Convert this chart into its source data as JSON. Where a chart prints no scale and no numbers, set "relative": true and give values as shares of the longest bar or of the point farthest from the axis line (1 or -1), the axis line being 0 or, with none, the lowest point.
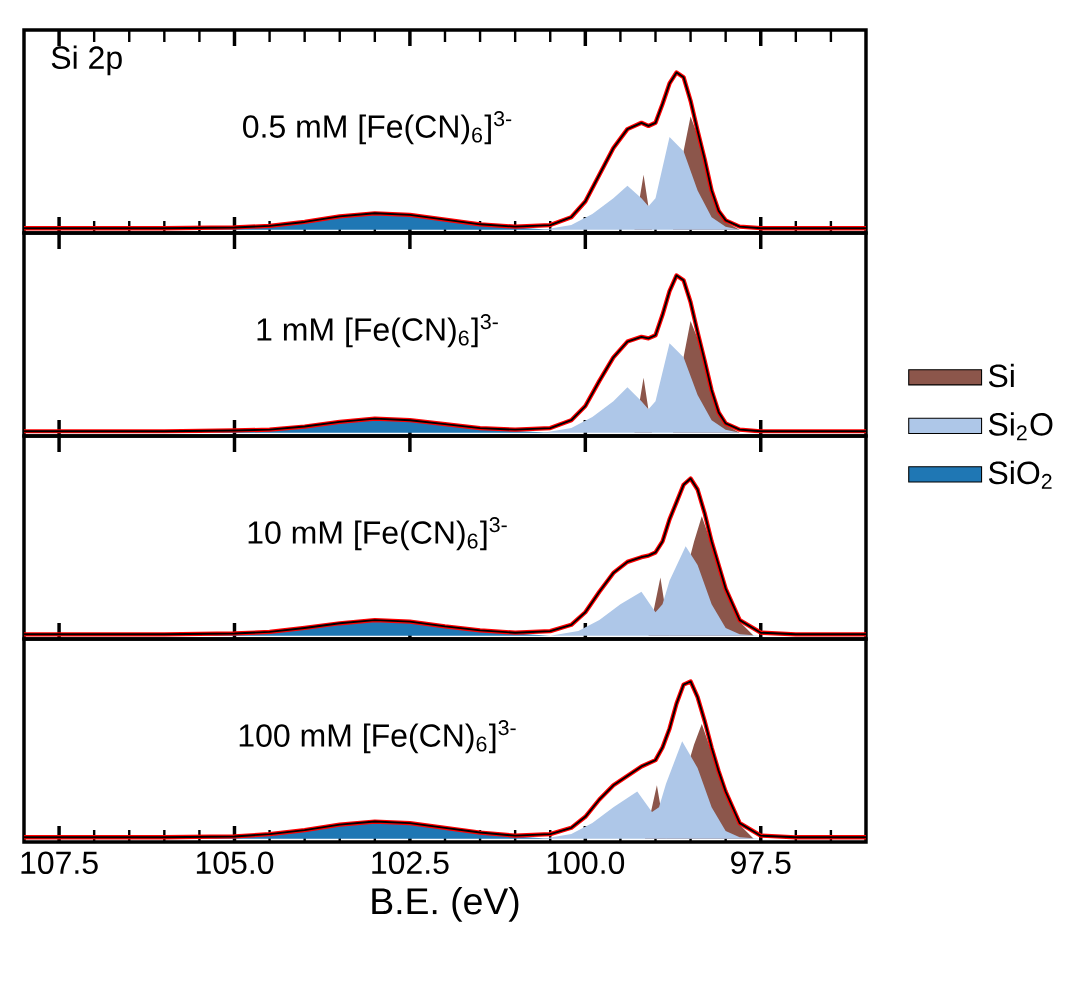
{
  "chart_data": [
    {
      "type": "area",
      "relative": true,
      "title": "0.5 mM [Fe(CN)$_{6}$]$^{3-}$",
      "annotations": [
        "Si 2p"
      ],
      "xlim": [
        108,
        96
      ],
      "tick_labels": false,
      "xticks": [
        107.5,
        105,
        102.5,
        100,
        97.5,
        {
          "value": 107,
          "label": null
        },
        {
          "value": 106.5,
          "label": null
        },
        {
          "value": 106,
          "label": null
        },
        {
          "value": 105.5,
          "label": null
        },
        {
          "value": 104.5,
          "label": null
        },
        {
          "value": 104,
          "label": null
        },
        {
          "value": 103.5,
          "label": null
        },
        {
          "value": 103,
          "label": null
        },
        {
          "value": 102,
          "label": null
        },
        {
          "value": 101.5,
          "label": null
        },
        {
          "value": 101,
          "label": null
        },
        {
          "value": 100.5,
          "label": null
        },
        {
          "value": 99.5,
          "label": null
        },
        {
          "value": 99,
          "label": null
        },
        {
          "value": 98.5,
          "label": null
        },
        {
          "value": 98,
          "label": null
        },
        {
          "value": 97,
          "label": null
        },
        {
          "value": 96.5,
          "label": null
        }
      ],
      "series": [
        {
          "color": "#8c564b",
          "x": [
            99.3,
            99.17,
            99.05,
            98.75,
            98.6,
            98.5,
            98.4,
            98.2,
            98.0,
            97.8
          ],
          "values": [
            0,
            0.35,
            0,
            0,
            0.5,
            0.72,
            0.6,
            0.24,
            0.05,
            0
          ]
        },
        {
          "color": "#aec7e8",
          "x": [
            100.6,
            100.2,
            99.9,
            99.6,
            99.4,
            99.2,
            99.1,
            99.0,
            98.8,
            98.6,
            98.4,
            98.2,
            98.0,
            97.8,
            97.5
          ],
          "values": [
            0,
            0.03,
            0.1,
            0.2,
            0.28,
            0.2,
            0.15,
            0.2,
            0.59,
            0.5,
            0.25,
            0.08,
            0.02,
            0,
            0
          ]
        },
        {
          "color": "#1f77b4",
          "x": [
            105.5,
            104.5,
            104,
            103.5,
            103,
            102.5,
            102,
            101.5,
            100.5
          ],
          "values": [
            0,
            0.02,
            0.045,
            0.08,
            0.1,
            0.09,
            0.06,
            0.03,
            0
          ]
        },
        {
          "type": "line",
          "color": "#ff0000",
          "x": [
            108,
            106,
            105,
            104.5,
            104,
            103.5,
            103,
            102.5,
            102,
            101.5,
            101,
            100.5,
            100.2,
            100,
            99.8,
            99.6,
            99.4,
            99.2,
            99.1,
            99.0,
            98.9,
            98.8,
            98.7,
            98.6,
            98.5,
            98.4,
            98.3,
            98.2,
            98.1,
            98.0,
            97.8,
            97.5,
            97,
            96
          ],
          "values": [
            0.01,
            0.01,
            0.015,
            0.025,
            0.05,
            0.085,
            0.105,
            0.095,
            0.065,
            0.035,
            0.02,
            0.03,
            0.08,
            0.18,
            0.35,
            0.52,
            0.64,
            0.68,
            0.66,
            0.68,
            0.8,
            0.93,
            1.0,
            0.97,
            0.82,
            0.63,
            0.45,
            0.25,
            0.12,
            0.06,
            0.02,
            0.01,
            0.01,
            0.01
          ]
        },
        {
          "type": "line",
          "color": "#000000",
          "x": [
            108,
            106,
            105,
            104.5,
            104,
            103.5,
            103,
            102.5,
            102,
            101.5,
            101,
            100.5,
            100.2,
            100,
            99.8,
            99.6,
            99.4,
            99.2,
            99.1,
            99.0,
            98.9,
            98.8,
            98.7,
            98.6,
            98.5,
            98.4,
            98.3,
            98.2,
            98.1,
            98.0,
            97.8,
            97.5,
            97,
            96
          ],
          "values": [
            0.01,
            0.01,
            0.015,
            0.025,
            0.05,
            0.085,
            0.105,
            0.095,
            0.065,
            0.035,
            0.02,
            0.03,
            0.08,
            0.18,
            0.35,
            0.52,
            0.64,
            0.68,
            0.66,
            0.68,
            0.8,
            0.93,
            1.0,
            0.97,
            0.82,
            0.63,
            0.45,
            0.25,
            0.12,
            0.06,
            0.02,
            0.01,
            0.01,
            0.01
          ]
        }
      ]
    },
    {
      "type": "area",
      "relative": true,
      "title": "1 mM [Fe(CN)$_{6}$]$^{3-}$",
      "xlim": [
        108,
        96
      ],
      "tick_labels": false,
      "legend": "right",
      "xticks": [
        107.5,
        105,
        102.5,
        100,
        97.5
      ],
      "series": [
        {
          "name": "Si",
          "color": "#8c564b",
          "x": [
            99.3,
            99.17,
            99.05,
            98.75,
            98.6,
            98.5,
            98.4,
            98.2,
            98.0,
            97.8
          ],
          "values": [
            0,
            0.35,
            0,
            0,
            0.48,
            0.71,
            0.6,
            0.25,
            0.05,
            0
          ]
        },
        {
          "name": "Si$_{2}$O",
          "color": "#aec7e8",
          "x": [
            100.6,
            100.2,
            99.9,
            99.6,
            99.4,
            99.2,
            99.1,
            99.0,
            98.8,
            98.6,
            98.4,
            98.2,
            98.0,
            97.8,
            97.5
          ],
          "values": [
            0,
            0.03,
            0.1,
            0.2,
            0.29,
            0.2,
            0.15,
            0.2,
            0.57,
            0.48,
            0.24,
            0.08,
            0.02,
            0,
            0
          ]
        },
        {
          "name": "SiO$_{2}$",
          "color": "#1f77b4",
          "x": [
            105.5,
            104.5,
            104,
            103.5,
            103,
            102.5,
            102,
            101.5,
            100.5
          ],
          "values": [
            0,
            0.015,
            0.035,
            0.065,
            0.085,
            0.075,
            0.05,
            0.025,
            0
          ]
        },
        {
          "type": "line",
          "color": "#ff0000",
          "x": [
            108,
            106,
            105,
            104.5,
            104,
            103.5,
            103,
            102.5,
            102,
            101.5,
            101,
            100.5,
            100.2,
            100,
            99.8,
            99.6,
            99.4,
            99.2,
            99.1,
            99.0,
            98.9,
            98.8,
            98.7,
            98.6,
            98.5,
            98.4,
            98.3,
            98.2,
            98.1,
            98.0,
            97.8,
            97.5,
            97,
            96
          ],
          "values": [
            0.01,
            0.01,
            0.015,
            0.02,
            0.04,
            0.07,
            0.09,
            0.08,
            0.055,
            0.03,
            0.02,
            0.03,
            0.08,
            0.17,
            0.33,
            0.48,
            0.58,
            0.61,
            0.6,
            0.62,
            0.75,
            0.9,
            1.0,
            0.97,
            0.83,
            0.64,
            0.46,
            0.27,
            0.13,
            0.06,
            0.02,
            0.01,
            0.01,
            0.01
          ]
        },
        {
          "type": "line",
          "color": "#000000",
          "x": [
            108,
            106,
            105,
            104.5,
            104,
            103.5,
            103,
            102.5,
            102,
            101.5,
            101,
            100.5,
            100.2,
            100,
            99.8,
            99.6,
            99.4,
            99.2,
            99.1,
            99.0,
            98.9,
            98.8,
            98.7,
            98.6,
            98.5,
            98.4,
            98.3,
            98.2,
            98.1,
            98.0,
            97.8,
            97.5,
            97,
            96
          ],
          "values": [
            0.01,
            0.01,
            0.015,
            0.02,
            0.04,
            0.07,
            0.09,
            0.08,
            0.055,
            0.03,
            0.02,
            0.03,
            0.08,
            0.17,
            0.33,
            0.48,
            0.58,
            0.61,
            0.6,
            0.62,
            0.75,
            0.9,
            1.0,
            0.97,
            0.83,
            0.64,
            0.46,
            0.27,
            0.13,
            0.06,
            0.02,
            0.01,
            0.01,
            0.01
          ]
        }
      ]
    },
    {
      "type": "area",
      "relative": true,
      "title": "10 mM [Fe(CN)$_{6}$]$^{3-}$",
      "xlim": [
        108,
        96
      ],
      "tick_labels": false,
      "xticks": [
        107.5,
        105,
        102.5,
        100,
        97.5
      ],
      "series": [
        {
          "color": "#8c564b",
          "x": [
            99.1,
            98.93,
            98.8,
            98.6,
            98.45,
            98.34,
            98.2,
            98.0,
            97.8,
            97.6
          ],
          "values": [
            0,
            0.37,
            0,
            null,
            0.6,
            0.76,
            0.58,
            0.28,
            0.09,
            0
          ]
        },
        {
          "color": "#aec7e8",
          "x": [
            100.5,
            100.1,
            99.8,
            99.5,
            99.2,
            99.0,
            98.9,
            98.8,
            98.57,
            98.4,
            98.2,
            98.0,
            97.8,
            97.5
          ],
          "values": [
            0,
            0.03,
            0.1,
            0.2,
            0.28,
            0.15,
            0.2,
            0.35,
            0.57,
            0.45,
            0.2,
            0.05,
            0.01,
            0
          ]
        },
        {
          "color": "#1f77b4",
          "x": [
            105.5,
            104.5,
            104,
            103.5,
            103,
            102.5,
            102,
            101.5,
            100.5
          ],
          "values": [
            0,
            0.02,
            0.045,
            0.075,
            0.1,
            0.085,
            0.055,
            0.03,
            0
          ]
        },
        {
          "type": "line",
          "color": "#ff0000",
          "x": [
            108,
            106,
            105,
            104.5,
            104,
            103.5,
            103,
            102.5,
            102,
            101.5,
            101,
            100.5,
            100.2,
            100,
            99.8,
            99.6,
            99.4,
            99.2,
            99.1,
            99.0,
            98.9,
            98.8,
            98.7,
            98.6,
            98.5,
            98.4,
            98.3,
            98.2,
            98.1,
            98.0,
            97.8,
            97.5,
            97,
            96
          ],
          "values": [
            0.01,
            0.01,
            0.015,
            0.025,
            0.05,
            0.08,
            0.1,
            0.09,
            0.06,
            0.035,
            0.02,
            0.03,
            0.07,
            0.15,
            0.28,
            0.4,
            0.47,
            0.5,
            0.51,
            0.53,
            0.6,
            0.74,
            0.85,
            0.96,
            1.0,
            0.93,
            0.78,
            0.6,
            0.45,
            0.3,
            0.1,
            0.02,
            0.01,
            0.01
          ]
        },
        {
          "type": "line",
          "color": "#000000",
          "x": [
            108,
            106,
            105,
            104.5,
            104,
            103.5,
            103,
            102.5,
            102,
            101.5,
            101,
            100.5,
            100.2,
            100,
            99.8,
            99.6,
            99.4,
            99.2,
            99.1,
            99.0,
            98.9,
            98.8,
            98.7,
            98.6,
            98.5,
            98.4,
            98.3,
            98.2,
            98.1,
            98.0,
            97.8,
            97.5,
            97,
            96
          ],
          "values": [
            0.01,
            0.01,
            0.015,
            0.025,
            0.05,
            0.08,
            0.1,
            0.09,
            0.06,
            0.035,
            0.02,
            0.03,
            0.07,
            0.15,
            0.28,
            0.4,
            0.47,
            0.5,
            0.51,
            0.53,
            0.6,
            0.74,
            0.85,
            0.96,
            1.0,
            0.93,
            0.78,
            0.6,
            0.45,
            0.3,
            0.1,
            0.02,
            0.01,
            0.01
          ]
        }
      ]
    },
    {
      "type": "area",
      "relative": true,
      "title": "100 mM [Fe(CN)$_{6}$]$^{3-}$",
      "xlabel": "B.E. (eV)",
      "xlim": [
        108,
        96
      ],
      "tick_labels": "x",
      "xticks": [
        {
          "value": 107.5,
          "label": "107.5"
        },
        {
          "value": 105,
          "label": "105.0"
        },
        {
          "value": 102.5,
          "label": "102.5"
        },
        {
          "value": 100,
          "label": "100.0"
        },
        {
          "value": 97.5,
          "label": "97.5"
        },
        {
          "value": 107,
          "label": null
        },
        {
          "value": 106.5,
          "label": null
        },
        {
          "value": 106,
          "label": null
        },
        {
          "value": 105.5,
          "label": null
        },
        {
          "value": 104.5,
          "label": null
        },
        {
          "value": 104,
          "label": null
        },
        {
          "value": 103.5,
          "label": null
        },
        {
          "value": 103,
          "label": null
        },
        {
          "value": 102,
          "label": null
        },
        {
          "value": 101.5,
          "label": null
        },
        {
          "value": 101,
          "label": null
        },
        {
          "value": 100.5,
          "label": null
        },
        {
          "value": 99.5,
          "label": null
        },
        {
          "value": 99,
          "label": null
        },
        {
          "value": 98.5,
          "label": null
        },
        {
          "value": 98,
          "label": null
        },
        {
          "value": 97,
          "label": null
        },
        {
          "value": 96.5,
          "label": null
        }
      ],
      "series": [
        {
          "color": "#8c564b",
          "x": [
            99.15,
            98.98,
            98.85,
            98.6,
            98.45,
            98.34,
            98.2,
            98.0,
            97.8,
            97.6
          ],
          "values": [
            0,
            0.34,
            0,
            null,
            0.6,
            0.73,
            0.55,
            0.28,
            0.09,
            0
          ]
        },
        {
          "color": "#aec7e8",
          "x": [
            100.6,
            100.2,
            99.9,
            99.6,
            99.26,
            99.05,
            98.95,
            98.85,
            98.62,
            98.4,
            98.2,
            98.0,
            97.8,
            97.5
          ],
          "values": [
            0,
            0.03,
            0.1,
            0.2,
            0.3,
            0.17,
            0.2,
            0.35,
            0.62,
            0.45,
            0.2,
            0.05,
            0.01,
            0
          ]
        },
        {
          "color": "#1f77b4",
          "x": [
            105.5,
            104.5,
            104,
            103.5,
            103,
            102.5,
            102,
            101.5,
            100.5
          ],
          "values": [
            0,
            0.02,
            0.05,
            0.085,
            0.11,
            0.1,
            0.065,
            0.03,
            0
          ]
        },
        {
          "type": "line",
          "color": "#ff0000",
          "x": [
            108,
            106,
            105,
            104.5,
            104,
            103.5,
            103,
            102.5,
            102,
            101.5,
            101,
            100.5,
            100.2,
            100,
            99.8,
            99.6,
            99.4,
            99.2,
            99.1,
            99.0,
            98.9,
            98.8,
            98.7,
            98.6,
            98.5,
            98.4,
            98.3,
            98.2,
            98.1,
            98.0,
            97.8,
            97.5,
            97,
            96
          ],
          "values": [
            0.01,
            0.01,
            0.015,
            0.03,
            0.055,
            0.09,
            0.11,
            0.1,
            0.07,
            0.04,
            0.02,
            0.03,
            0.07,
            0.14,
            0.25,
            0.34,
            0.4,
            0.46,
            0.48,
            0.5,
            0.58,
            0.7,
            0.86,
            0.98,
            1.0,
            0.9,
            0.75,
            0.58,
            0.43,
            0.3,
            0.1,
            0.02,
            0.01,
            0.01
          ]
        },
        {
          "type": "line",
          "color": "#000000",
          "x": [
            108,
            106,
            105,
            104.5,
            104,
            103.5,
            103,
            102.5,
            102,
            101.5,
            101,
            100.5,
            100.2,
            100,
            99.8,
            99.6,
            99.4,
            99.2,
            99.1,
            99.0,
            98.9,
            98.8,
            98.7,
            98.6,
            98.5,
            98.4,
            98.3,
            98.2,
            98.1,
            98.0,
            97.8,
            97.5,
            97,
            96
          ],
          "values": [
            0.01,
            0.01,
            0.015,
            0.03,
            0.055,
            0.09,
            0.11,
            0.1,
            0.07,
            0.04,
            0.02,
            0.03,
            0.07,
            0.14,
            0.25,
            0.34,
            0.4,
            0.46,
            0.48,
            0.5,
            0.58,
            0.7,
            0.86,
            0.98,
            1.0,
            0.9,
            0.75,
            0.58,
            0.43,
            0.3,
            0.1,
            0.02,
            0.01,
            0.01
          ]
        }
      ]
    }
  ]
}
